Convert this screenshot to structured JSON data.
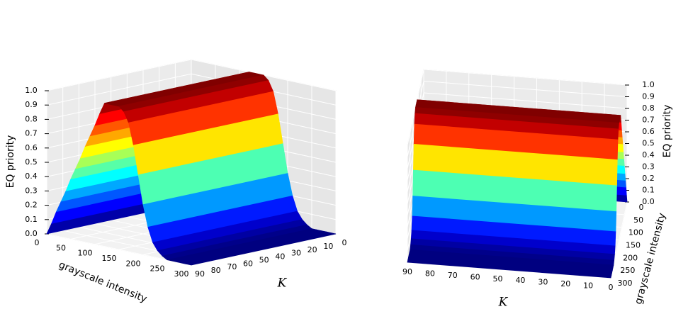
{
  "chart_data": [
    {
      "type": "surface3d",
      "colormap": "jet",
      "xlabel": "grayscale intensity",
      "ylabel": "K",
      "zlabel": "EQ priority",
      "x": [
        0,
        10,
        20,
        30,
        40,
        50,
        60,
        70,
        80,
        90,
        100,
        110,
        120,
        130,
        140,
        150,
        160,
        170,
        180,
        190,
        200,
        210,
        220,
        230,
        240,
        250,
        260,
        270,
        280,
        290,
        300
      ],
      "values": [
        0,
        0.08,
        0.17,
        0.25,
        0.33,
        0.42,
        0.5,
        0.58,
        0.67,
        0.75,
        0.83,
        0.92,
        1,
        1,
        1,
        1,
        0.97,
        0.9,
        0.75,
        0.55,
        0.35,
        0.2,
        0.1,
        0.05,
        0.02,
        0,
        0,
        0,
        0,
        0,
        0
      ],
      "xlim": [
        0,
        300
      ],
      "ylim": [
        0,
        90
      ],
      "zlim": [
        0,
        1
      ],
      "xticks": [
        0,
        50,
        100,
        150,
        200,
        250,
        300
      ],
      "yticks": [
        0,
        10,
        20,
        30,
        40,
        50,
        60,
        70,
        80,
        90
      ],
      "zticks": [
        {
          "value": 0,
          "label": "0.0"
        },
        0.1,
        0.2,
        0.3,
        0.4,
        0.5,
        0.6,
        0.7,
        0.8,
        0.9,
        {
          "value": 1,
          "label": "1.0"
        }
      ]
    },
    {
      "type": "surface3d",
      "colormap": "jet",
      "xlabel": "grayscale intensity",
      "ylabel": "K",
      "zlabel": "EQ priority",
      "x": [
        0,
        10,
        20,
        30,
        40,
        50,
        60,
        70,
        80,
        90,
        100,
        110,
        120,
        130,
        140,
        150,
        160,
        170,
        180,
        190,
        200,
        210,
        220,
        230,
        240,
        250,
        260,
        270,
        280,
        290,
        300
      ],
      "values": [
        0,
        0.08,
        0.17,
        0.25,
        0.33,
        0.42,
        0.5,
        0.58,
        0.67,
        0.75,
        0.83,
        0.92,
        1,
        1,
        1,
        1,
        0.97,
        0.9,
        0.75,
        0.55,
        0.35,
        0.2,
        0.1,
        0.05,
        0.02,
        0,
        0,
        0,
        0,
        0,
        0
      ],
      "xlim": [
        0,
        300
      ],
      "ylim": [
        0,
        90
      ],
      "zlim": [
        0,
        1
      ],
      "xticks": [
        0,
        50,
        100,
        150,
        200,
        250,
        300
      ],
      "yticks": [
        0,
        10,
        20,
        30,
        40,
        50,
        60,
        70,
        80,
        90
      ],
      "zticks": [
        {
          "value": 0,
          "label": "0.0"
        },
        0.1,
        0.2,
        0.3,
        0.4,
        0.5,
        0.6,
        0.7,
        0.8,
        0.9,
        {
          "value": 1,
          "label": "1.0"
        }
      ]
    }
  ]
}
